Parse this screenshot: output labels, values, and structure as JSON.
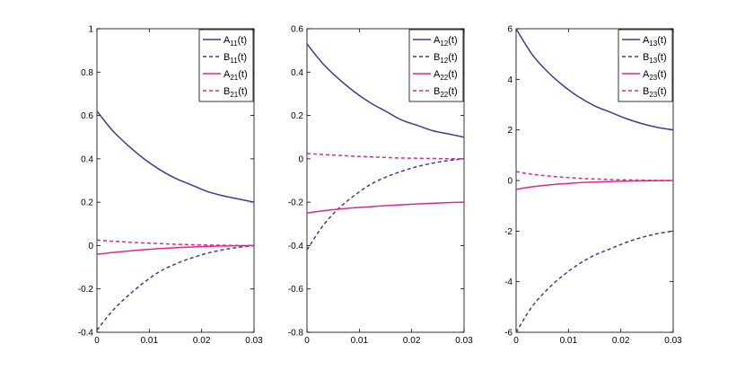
{
  "chart_data": [
    {
      "type": "line",
      "x": [
        0,
        0.003,
        0.006,
        0.009,
        0.012,
        0.015,
        0.018,
        0.021,
        0.024,
        0.027,
        0.03
      ],
      "xlim": [
        0,
        0.03
      ],
      "ylim": [
        -0.4,
        1
      ],
      "xticks": [
        0,
        0.01,
        0.02,
        0.03
      ],
      "xtick_labels": [
        "0",
        "0.01",
        "0.02",
        "0.03"
      ],
      "yticks": [
        -0.4,
        -0.2,
        0,
        0.2,
        0.4,
        0.6,
        0.8,
        1
      ],
      "ytick_labels": [
        "-0.4",
        "-0.2",
        "0",
        "0.2",
        "0.4",
        "0.6",
        "0.8",
        "1"
      ],
      "legend_position": "top-right",
      "series": [
        {
          "name": "A11(t)",
          "base": "A",
          "sub": "11",
          "suffix": "(t)",
          "color": "#3c3c9a",
          "dash": "solid",
          "values": [
            0.62,
            0.53,
            0.46,
            0.4,
            0.35,
            0.31,
            0.28,
            0.25,
            0.23,
            0.215,
            0.2
          ]
        },
        {
          "name": "B11(t)",
          "base": "B",
          "sub": "11",
          "suffix": "(t)",
          "color": "#3c3c9a",
          "dash": "dashed",
          "values": [
            -0.39,
            -0.3,
            -0.23,
            -0.17,
            -0.12,
            -0.085,
            -0.058,
            -0.036,
            -0.02,
            -0.008,
            0.0
          ]
        },
        {
          "name": "A21(t)",
          "base": "A",
          "sub": "21",
          "suffix": "(t)",
          "color": "#e0288a",
          "dash": "solid",
          "values": [
            -0.04,
            -0.032,
            -0.025,
            -0.019,
            -0.014,
            -0.01,
            -0.007,
            -0.004,
            -0.002,
            -0.001,
            0.0
          ]
        },
        {
          "name": "B21(t)",
          "base": "B",
          "sub": "21",
          "suffix": "(t)",
          "color": "#e0288a",
          "dash": "dashed",
          "values": [
            0.025,
            0.02,
            0.016,
            0.012,
            0.009,
            0.006,
            0.004,
            0.0025,
            0.0015,
            0.0005,
            0.0
          ]
        }
      ]
    },
    {
      "type": "line",
      "x": [
        0,
        0.003,
        0.006,
        0.009,
        0.012,
        0.015,
        0.018,
        0.021,
        0.024,
        0.027,
        0.03
      ],
      "xlim": [
        0,
        0.03
      ],
      "ylim": [
        -0.8,
        0.6
      ],
      "xticks": [
        0,
        0.01,
        0.02,
        0.03
      ],
      "xtick_labels": [
        "0",
        "0.01",
        "0.02",
        "0.03"
      ],
      "yticks": [
        -0.8,
        -0.6,
        -0.4,
        -0.2,
        0,
        0.2,
        0.4,
        0.6
      ],
      "ytick_labels": [
        "-0.8",
        "-0.6",
        "-0.4",
        "-0.2",
        "0",
        "0.2",
        "0.4",
        "0.6"
      ],
      "legend_position": "top-right",
      "series": [
        {
          "name": "A12(t)",
          "base": "A",
          "sub": "12",
          "suffix": "(t)",
          "color": "#3c3c9a",
          "dash": "solid",
          "values": [
            0.53,
            0.44,
            0.37,
            0.31,
            0.26,
            0.22,
            0.18,
            0.155,
            0.13,
            0.115,
            0.1
          ]
        },
        {
          "name": "B12(t)",
          "base": "B",
          "sub": "12",
          "suffix": "(t)",
          "color": "#3c3c9a",
          "dash": "dashed",
          "values": [
            -0.42,
            -0.31,
            -0.23,
            -0.17,
            -0.12,
            -0.085,
            -0.058,
            -0.036,
            -0.02,
            -0.008,
            0.0
          ]
        },
        {
          "name": "A22(t)",
          "base": "A",
          "sub": "22",
          "suffix": "(t)",
          "color": "#e0288a",
          "dash": "solid",
          "values": [
            -0.25,
            -0.24,
            -0.232,
            -0.226,
            -0.221,
            -0.216,
            -0.212,
            -0.208,
            -0.205,
            -0.202,
            -0.2
          ]
        },
        {
          "name": "B22(t)",
          "base": "B",
          "sub": "22",
          "suffix": "(t)",
          "color": "#e0288a",
          "dash": "dashed",
          "values": [
            0.025,
            0.02,
            0.016,
            0.012,
            0.009,
            0.006,
            0.004,
            0.0025,
            0.0015,
            0.0005,
            0.0
          ]
        }
      ]
    },
    {
      "type": "line",
      "x": [
        0,
        0.003,
        0.006,
        0.009,
        0.012,
        0.015,
        0.018,
        0.021,
        0.024,
        0.027,
        0.03
      ],
      "xlim": [
        0,
        0.03
      ],
      "ylim": [
        -6,
        6
      ],
      "xticks": [
        0,
        0.01,
        0.02,
        0.03
      ],
      "xtick_labels": [
        "0",
        "0.01",
        "0.02",
        "0.03"
      ],
      "yticks": [
        -6,
        -4,
        -2,
        0,
        2,
        4,
        6
      ],
      "ytick_labels": [
        "-6",
        "-4",
        "-2",
        "0",
        "2",
        "4",
        "6"
      ],
      "legend_position": "top-right",
      "series": [
        {
          "name": "A13(t)",
          "base": "A",
          "sub": "13",
          "suffix": "(t)",
          "color": "#3c3c9a",
          "dash": "solid",
          "values": [
            6.0,
            5.0,
            4.3,
            3.75,
            3.3,
            2.95,
            2.7,
            2.45,
            2.25,
            2.1,
            2.0
          ]
        },
        {
          "name": "B13(t)",
          "base": "B",
          "sub": "13",
          "suffix": "(t)",
          "color": "#3c3c9a",
          "dash": "dashed",
          "values": [
            -6.0,
            -5.0,
            -4.3,
            -3.75,
            -3.3,
            -2.95,
            -2.7,
            -2.45,
            -2.25,
            -2.1,
            -2.0
          ]
        },
        {
          "name": "A23(t)",
          "base": "A",
          "sub": "23",
          "suffix": "(t)",
          "color": "#e0288a",
          "dash": "solid",
          "values": [
            -0.35,
            -0.25,
            -0.18,
            -0.13,
            -0.09,
            -0.06,
            -0.04,
            -0.025,
            -0.015,
            -0.005,
            0.0
          ]
        },
        {
          "name": "B23(t)",
          "base": "B",
          "sub": "23",
          "suffix": "(t)",
          "color": "#e0288a",
          "dash": "dashed",
          "values": [
            0.35,
            0.25,
            0.18,
            0.13,
            0.09,
            0.06,
            0.04,
            0.025,
            0.015,
            0.005,
            0.0
          ]
        }
      ]
    }
  ]
}
